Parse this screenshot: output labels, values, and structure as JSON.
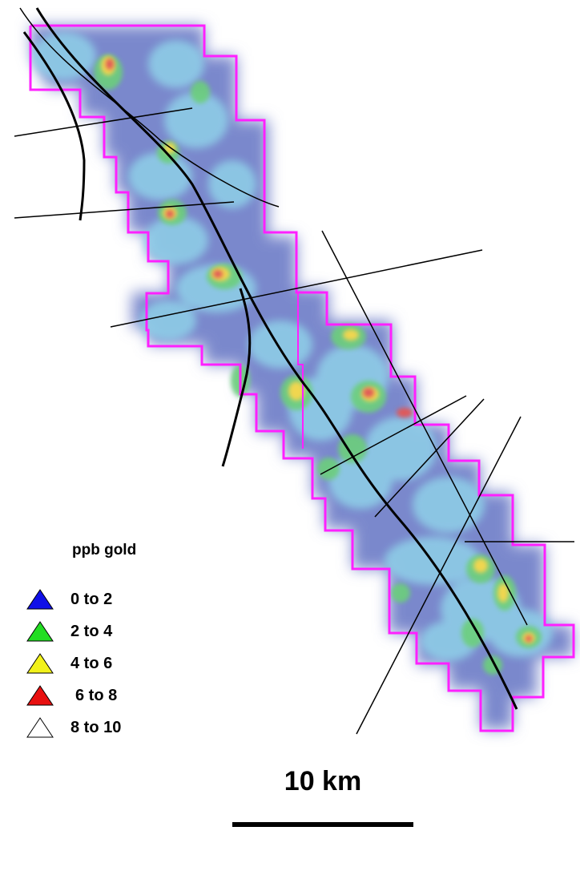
{
  "legend": {
    "title": "ppb gold",
    "items": [
      {
        "label": "0 to 2",
        "color": "#1010e8"
      },
      {
        "label": "2 to 4",
        "color": "#22dd22"
      },
      {
        "label": "4 to 6",
        "color": "#f2f21a"
      },
      {
        "label": "6 to 8",
        "color": "#e81010"
      },
      {
        "label": "8 to 10",
        "color": "#ffffff"
      }
    ]
  },
  "scale": {
    "label": "10 km"
  },
  "colors": {
    "boundary": "#ff20ff",
    "faults": "#000000",
    "background_grid": "#7a8ccc",
    "anomaly_low": "#90c8e8",
    "anomaly_mid": "#70d080",
    "anomaly_high": "#f0e050",
    "anomaly_peak": "#e05050"
  }
}
